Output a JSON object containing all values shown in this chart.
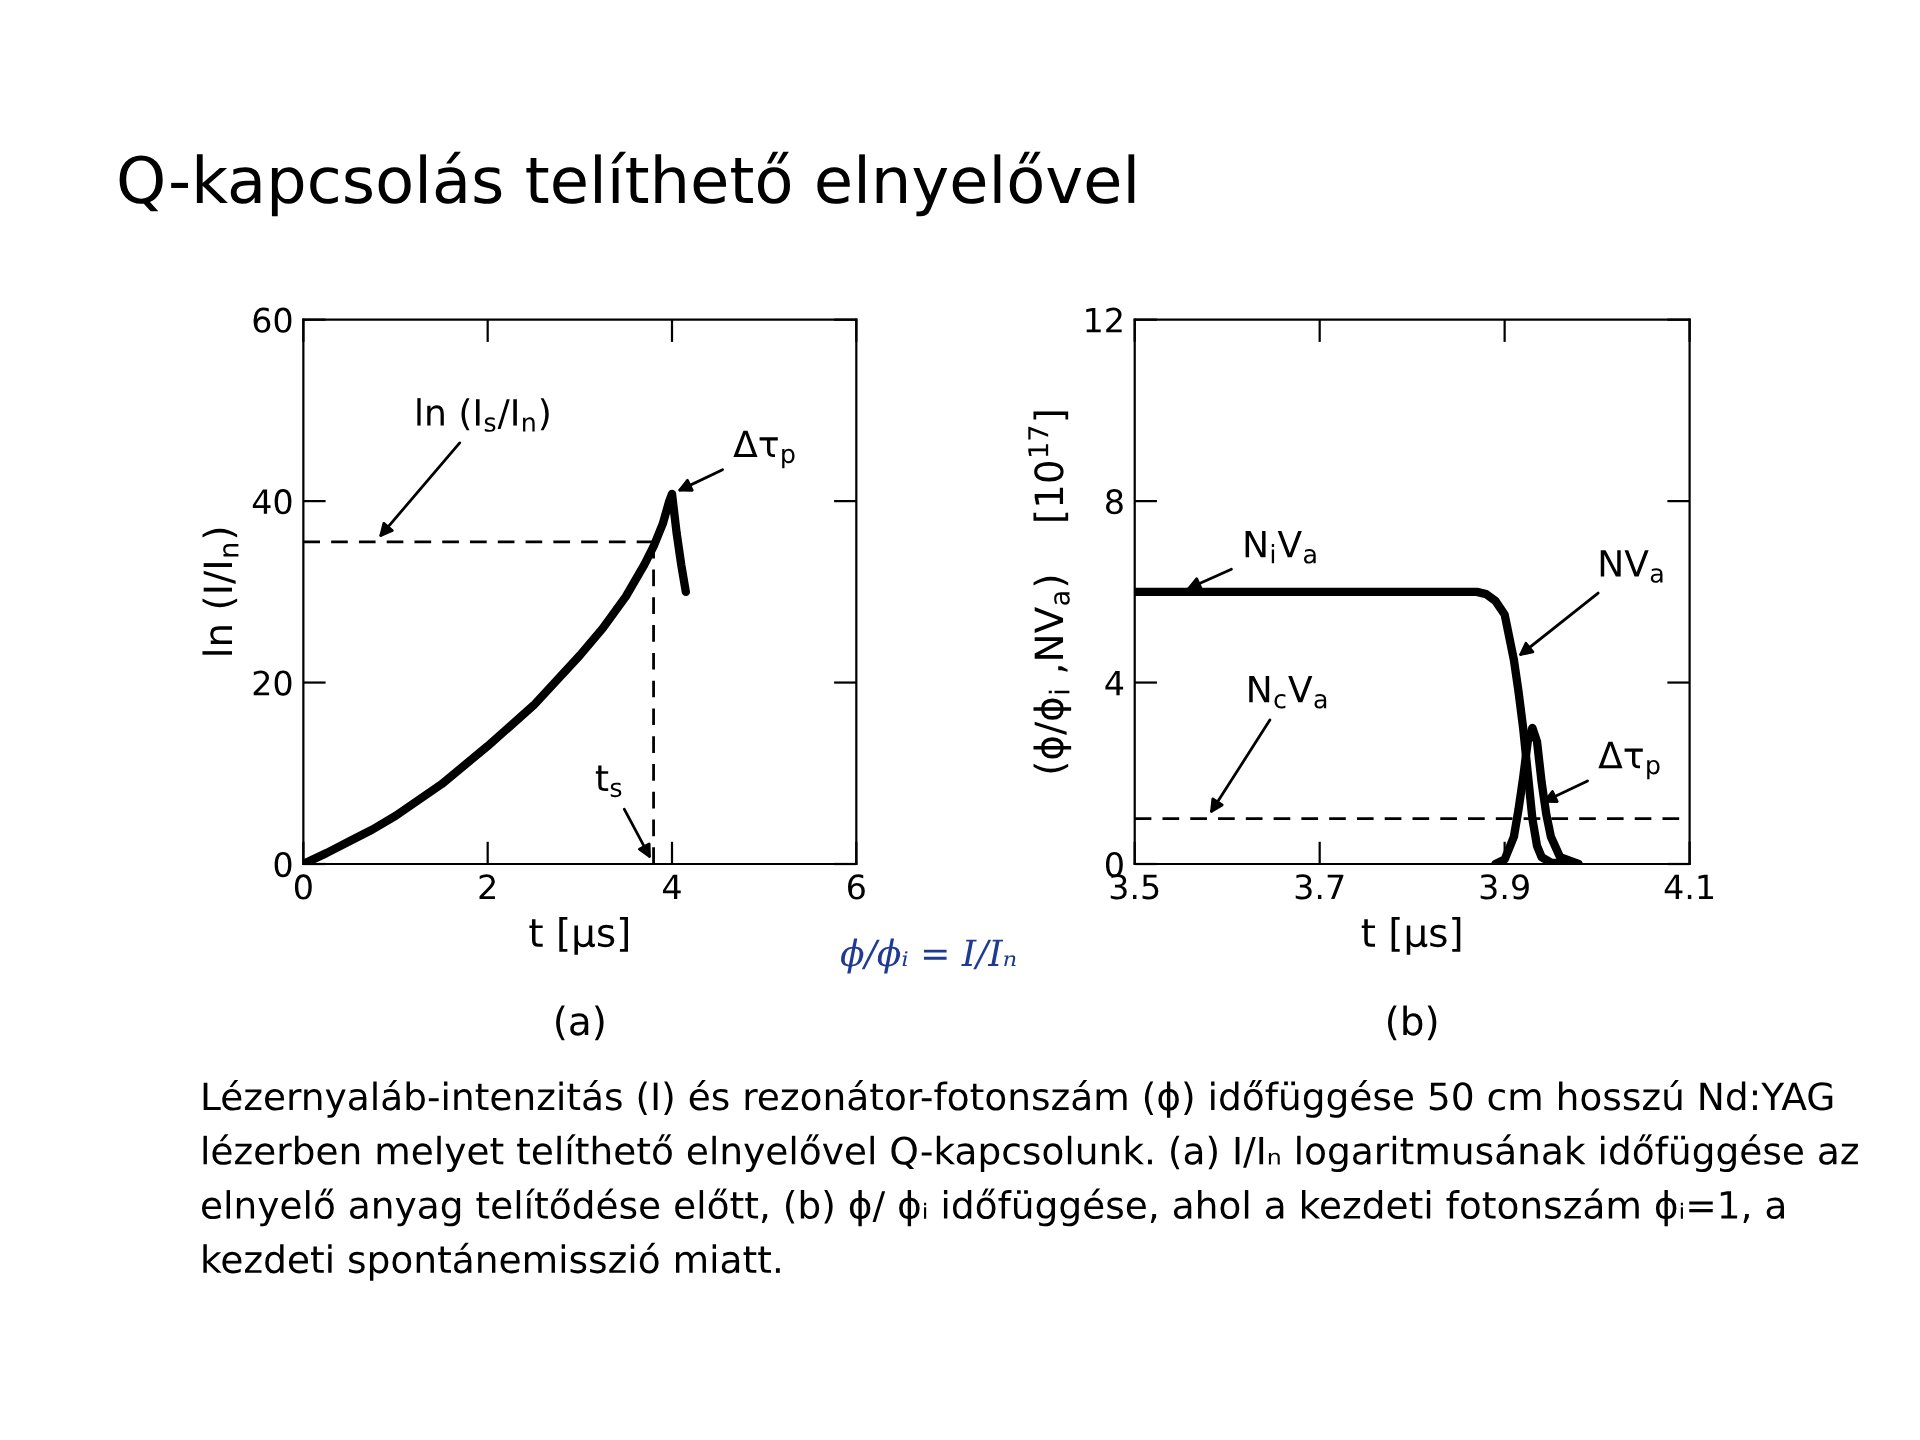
{
  "chart_data": [
    {
      "type": "other",
      "title": "Q-kapcsolás telíthető elnyelővel"
    },
    {
      "type": "line",
      "xlabel": "t [μs]",
      "ylabel": "ln (I/I$_{n}$)",
      "xlim": [
        0,
        6
      ],
      "xticks": [
        0,
        2,
        4,
        6
      ],
      "ylim": [
        0,
        60
      ],
      "yticks": [
        0,
        20,
        40,
        60
      ],
      "grid": false,
      "legend": false,
      "series": [
        {
          "color": "#000000",
          "x": [
            0,
            0.25,
            0.5,
            0.75,
            1,
            1.5,
            2,
            2.5,
            3,
            3.25,
            3.5,
            3.7,
            3.8,
            3.9,
            3.97,
            4.0,
            4.05,
            4.1,
            4.15
          ],
          "values": [
            0,
            1.2,
            2.5,
            3.8,
            5.3,
            8.8,
            13,
            17.5,
            23,
            26,
            29.5,
            33,
            35,
            37.5,
            40,
            40.8,
            36.5,
            33,
            30
          ]
        }
      ],
      "ref_lines": [
        {
          "axis": "y",
          "value": 35.5,
          "label": "ln (I$_{s}$/I$_{n}$)",
          "line_style": "dashed"
        },
        {
          "axis": "x",
          "value": 3.8,
          "label": "t$_{s}$",
          "line_style": "dashed"
        }
      ],
      "annotations": [
        "(a)",
        {
          "text": "Δτ$_{p}$",
          "x": 4.0,
          "y": 40.8
        }
      ]
    },
    {
      "type": "line",
      "xlabel": "t [μs]",
      "ylabel": "(ϕ/ϕ$_{i}$ ,NV$_{a}$)    [10$^{17}$]",
      "xlim": [
        3.5,
        4.1
      ],
      "xticks": [
        3.5,
        3.7,
        3.9,
        4.1
      ],
      "ylim": [
        0,
        12
      ],
      "yticks": [
        0,
        4,
        8,
        12
      ],
      "grid": false,
      "legend": false,
      "series": [
        {
          "name": "NV$_{a}$",
          "color": "#000000",
          "x": [
            3.5,
            3.6,
            3.7,
            3.8,
            3.87,
            3.88,
            3.89,
            3.9,
            3.91,
            3.915,
            3.92,
            3.925,
            3.93,
            3.935,
            3.94,
            3.95,
            3.97
          ],
          "values": [
            6,
            6,
            6,
            6,
            6,
            5.95,
            5.8,
            5.5,
            4.5,
            3.8,
            3.0,
            2.0,
            1.0,
            0.4,
            0.15,
            0.03,
            0
          ]
        },
        {
          "color": "#000000",
          "x": [
            3.89,
            3.9,
            3.91,
            3.915,
            3.92,
            3.925,
            3.93,
            3.935,
            3.94,
            3.945,
            3.95,
            3.96,
            3.98
          ],
          "values": [
            0,
            0.1,
            0.6,
            1.2,
            1.9,
            2.7,
            3.0,
            2.7,
            1.8,
            1.1,
            0.6,
            0.15,
            0
          ]
        }
      ],
      "ref_lines": [
        {
          "axis": "y",
          "value": 1,
          "label": "N$_{c}$V$_{a}$",
          "line_style": "dashed"
        }
      ],
      "annotations": [
        "(b)",
        {
          "text": "N$_{i}$V$_{a}$",
          "x": 3.55,
          "y": 6
        },
        {
          "text": "Δτ$_{p}$",
          "x": 3.935,
          "y": 1.3
        }
      ]
    },
    {
      "type": "other",
      "annotations": [
        "ϕ/ϕᵢ = I/Iₙ",
        "Lézernyaláb-intenzitás (I) és rezonátor-fotonszám (ϕ) időfüggése 50 cm hosszú Nd:YAG lézerben melyet telíthető elnyelővel Q-kapcsolunk. (a) I/Iₙ logaritmusának időfüggése az elnyelő anyag telítődése előtt, (b) ϕ/ ϕᵢ időfüggése, ahol a kezdeti fotonszám ϕᵢ=1, a kezdeti spontánemisszió miatt."
      ]
    }
  ]
}
